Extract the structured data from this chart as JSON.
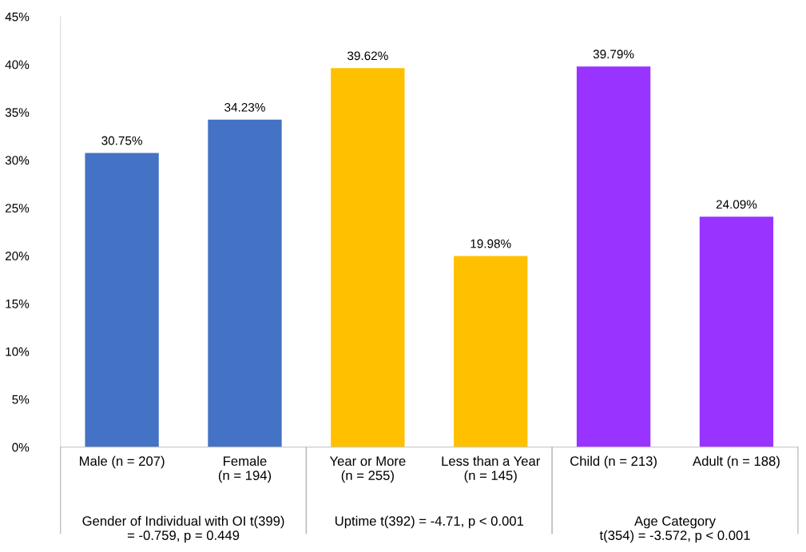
{
  "chart_data": {
    "type": "bar",
    "categories": [
      "Male (n = 207)",
      "Female\n(n = 194)",
      "Year or More\n(n = 255)",
      "Less than a Year\n(n = 145)",
      "Child (n = 213)",
      "Adult (n = 188)"
    ],
    "values": [
      30.75,
      34.23,
      39.62,
      19.98,
      39.79,
      24.09
    ],
    "colors": [
      "#4472c4",
      "#4472c4",
      "#ffc000",
      "#ffc000",
      "#9933ff",
      "#9933ff"
    ],
    "value_labels": [
      "30.75%",
      "34.23%",
      "39.62%",
      "19.98%",
      "39.79%",
      "24.09%"
    ],
    "ylim": [
      0,
      45
    ],
    "yticks": [
      {
        "value": 0,
        "label": "0%"
      },
      {
        "value": 5,
        "label": "5%"
      },
      {
        "value": 10,
        "label": "10%"
      },
      {
        "value": 15,
        "label": "15%"
      },
      {
        "value": 20,
        "label": "20%"
      },
      {
        "value": 25,
        "label": "25%"
      },
      {
        "value": 30,
        "label": "30%"
      },
      {
        "value": 35,
        "label": "35%"
      },
      {
        "value": 40,
        "label": "40%"
      },
      {
        "value": 45,
        "label": "45%"
      }
    ],
    "annotations": [
      "Gender of Individual with OI t(399)\n= -0.759, p = 0.449",
      "Uptime t(392) = -4.71, p < 0.001",
      "Age Category\nt(354) = -3.572, p < 0.001"
    ],
    "grid": false,
    "legend": false
  }
}
